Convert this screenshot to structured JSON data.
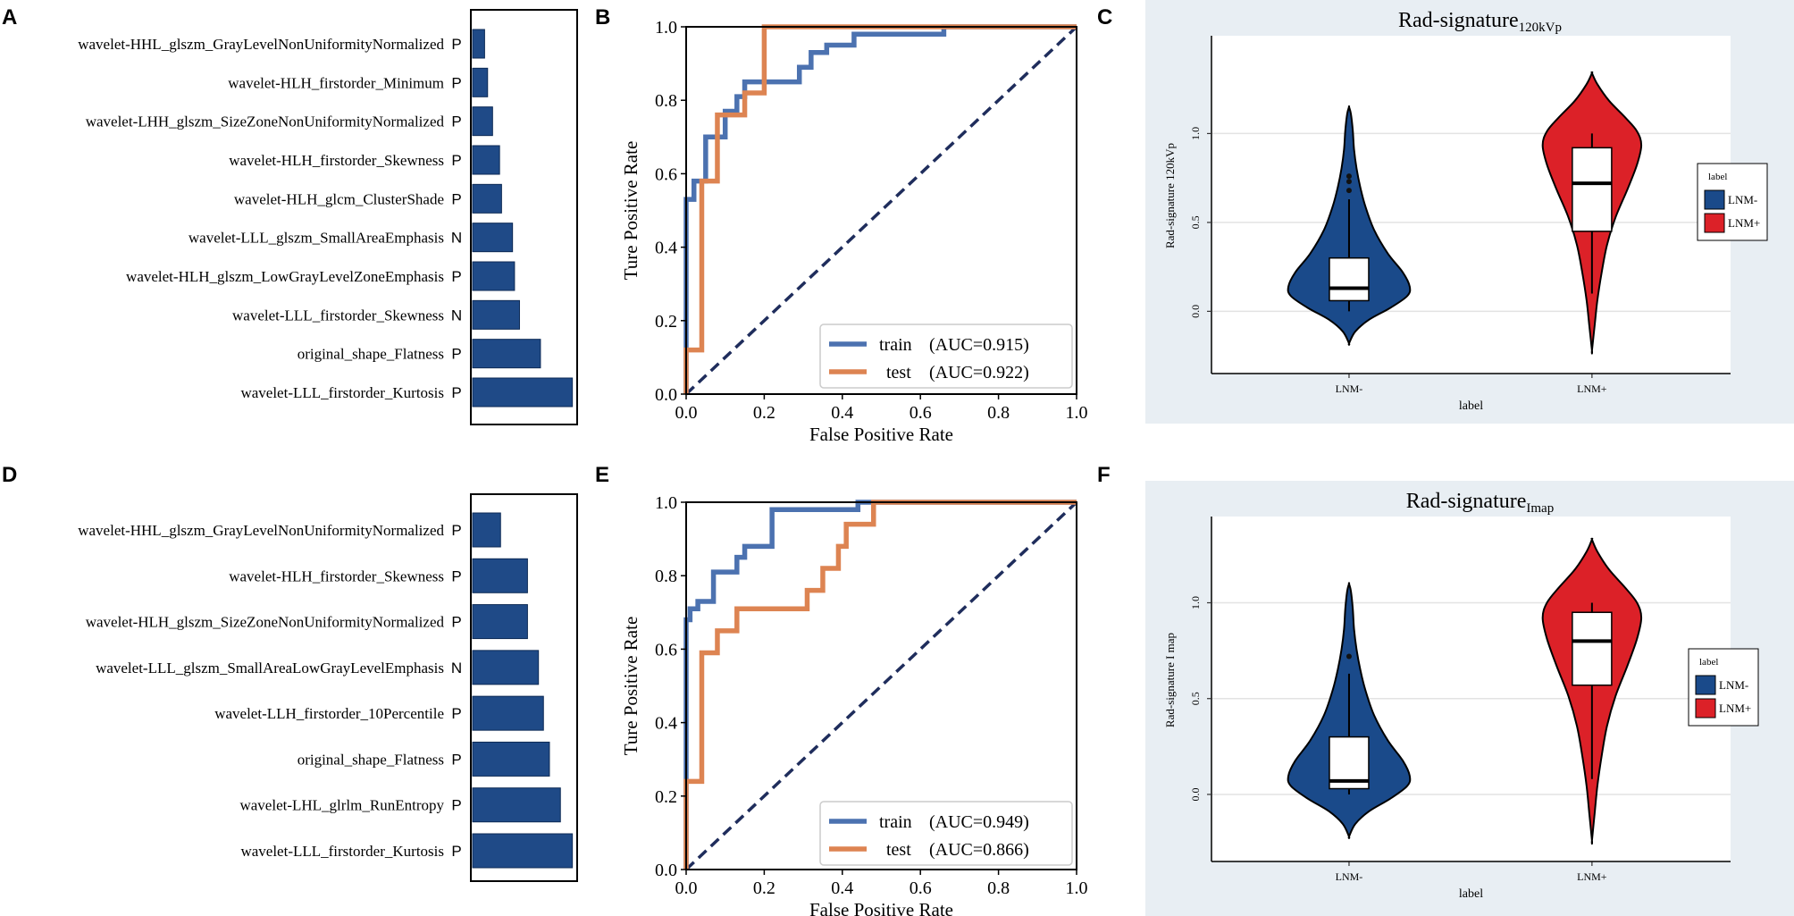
{
  "chart_data": [
    {
      "panel": "A",
      "type": "bar",
      "orientation": "horizontal",
      "categories": [
        "wavelet-HHL_glszm_GrayLevelNonUniformityNormalized",
        "wavelet-HLH_firstorder_Minimum",
        "wavelet-LHH_glszm_SizeZoneNonUniformityNormalized",
        "wavelet-HLH_firstorder_Skewness",
        "wavelet-HLH_glcm_ClusterShade",
        "wavelet-LLL_glszm_SmallAreaEmphasis",
        "wavelet-HLH_glszm_LowGrayLevelZoneEmphasis",
        "wavelet-LLL_firstorder_Skewness",
        "original_shape_Flatness",
        "wavelet-LLL_firstorder_Kurtosis"
      ],
      "signs": [
        "P",
        "P",
        "P",
        "P",
        "P",
        "N",
        "P",
        "N",
        "P",
        "P"
      ],
      "values": [
        0.12,
        0.15,
        0.2,
        0.27,
        0.29,
        0.4,
        0.42,
        0.47,
        0.68,
        1.0
      ],
      "xlim": [
        0,
        1.03
      ],
      "bar_color": "#1f4a87"
    },
    {
      "panel": "B",
      "type": "line",
      "subtype": "roc",
      "xlabel": "False Positive Rate",
      "ylabel": "Ture Positive Rate",
      "xlim": [
        0,
        1
      ],
      "ylim": [
        0,
        1
      ],
      "xticks": [
        "0.0",
        "0.2",
        "0.4",
        "0.6",
        "0.8",
        "1.0"
      ],
      "yticks": [
        "0.0",
        "0.2",
        "0.4",
        "0.6",
        "0.8",
        "1.0"
      ],
      "legend": "lower right",
      "series": [
        {
          "name": "train",
          "label": "train",
          "auc_text": "(AUC=0.915)",
          "color": "#4c72b0",
          "x": [
            0,
            0,
            0.02,
            0.02,
            0.05,
            0.05,
            0.1,
            0.1,
            0.13,
            0.13,
            0.15,
            0.15,
            0.2,
            0.2,
            0.29,
            0.29,
            0.32,
            0.32,
            0.36,
            0.36,
            0.43,
            0.43,
            0.66,
            0.66,
            1.0
          ],
          "y": [
            0,
            0.53,
            0.53,
            0.58,
            0.58,
            0.7,
            0.7,
            0.77,
            0.77,
            0.81,
            0.81,
            0.85,
            0.85,
            0.85,
            0.85,
            0.89,
            0.89,
            0.93,
            0.93,
            0.95,
            0.95,
            0.98,
            0.98,
            1.0,
            1.0
          ]
        },
        {
          "name": "test",
          "label": "test",
          "auc_text": "(AUC=0.922)",
          "color": "#dd8452",
          "x": [
            0,
            0,
            0.04,
            0.04,
            0.06,
            0.06,
            0.08,
            0.08,
            0.15,
            0.15,
            0.2,
            0.2,
            1.0
          ],
          "y": [
            0,
            0.12,
            0.12,
            0.58,
            0.58,
            0.58,
            0.58,
            0.76,
            0.76,
            0.82,
            0.82,
            1.0,
            1.0
          ]
        }
      ],
      "reference_line_color": "#1f2d5c"
    },
    {
      "panel": "C",
      "type": "violin",
      "title_main": "Rad-signature",
      "title_sub": "120kVp",
      "xlabel": "label",
      "ylabel": "Rad-signature 120kVp",
      "categories": [
        "LNM-",
        "LNM+"
      ],
      "ylim": [
        -0.35,
        1.55
      ],
      "yticks": [
        "0.0",
        "0.5",
        "1.0"
      ],
      "legend_title": "label",
      "groups": [
        {
          "name": "LNM-",
          "color": "#1a4a8a",
          "min": -0.18,
          "max": 1.15,
          "q1": 0.06,
          "median": 0.13,
          "q3": 0.3,
          "whisker_low": 0.0,
          "whisker_high": 0.63,
          "outliers": [
            0.68,
            0.73,
            0.76
          ]
        },
        {
          "name": "LNM+",
          "color": "#dc2128",
          "min": -0.22,
          "max": 1.34,
          "q1": 0.45,
          "median": 0.72,
          "q3": 0.92,
          "whisker_low": 0.1,
          "whisker_high": 1.0,
          "outliers": []
        }
      ]
    },
    {
      "panel": "D",
      "type": "bar",
      "orientation": "horizontal",
      "categories": [
        "wavelet-HHL_glszm_GrayLevelNonUniformityNormalized",
        "wavelet-HLH_firstorder_Skewness",
        "wavelet-HLH_glszm_SizeZoneNonUniformityNormalized",
        "wavelet-LLL_glszm_SmallAreaLowGrayLevelEmphasis",
        "wavelet-LLH_firstorder_10Percentile",
        "original_shape_Flatness",
        "wavelet-LHL_glrlm_RunEntropy",
        "wavelet-LLL_firstorder_Kurtosis"
      ],
      "signs": [
        "P",
        "P",
        "P",
        "N",
        "P",
        "P",
        "P",
        "P"
      ],
      "values": [
        0.28,
        0.55,
        0.55,
        0.66,
        0.71,
        0.77,
        0.88,
        1.0
      ],
      "xlim": [
        0,
        1.03
      ],
      "bar_color": "#1f4a87"
    },
    {
      "panel": "E",
      "type": "line",
      "subtype": "roc",
      "xlabel": "False Positive Rate",
      "ylabel": "Ture Positive Rate",
      "xlim": [
        0,
        1
      ],
      "ylim": [
        0,
        1
      ],
      "xticks": [
        "0.0",
        "0.2",
        "0.4",
        "0.6",
        "0.8",
        "1.0"
      ],
      "yticks": [
        "0.0",
        "0.2",
        "0.4",
        "0.6",
        "0.8",
        "1.0"
      ],
      "legend": "lower right",
      "series": [
        {
          "name": "train",
          "label": "train",
          "auc_text": "(AUC=0.949)",
          "color": "#4c72b0",
          "x": [
            0,
            0,
            0.01,
            0.01,
            0.03,
            0.03,
            0.07,
            0.07,
            0.13,
            0.13,
            0.15,
            0.15,
            0.22,
            0.22,
            0.44,
            0.44,
            0.47,
            0.47,
            1.0
          ],
          "y": [
            0,
            0.68,
            0.68,
            0.71,
            0.71,
            0.73,
            0.73,
            0.81,
            0.81,
            0.85,
            0.85,
            0.88,
            0.88,
            0.98,
            0.98,
            1.0,
            1.0,
            1.0,
            1.0
          ]
        },
        {
          "name": "test",
          "label": "test",
          "auc_text": "(AUC=0.866)",
          "color": "#dd8452",
          "x": [
            0,
            0,
            0.04,
            0.04,
            0.08,
            0.08,
            0.13,
            0.13,
            0.27,
            0.27,
            0.31,
            0.31,
            0.35,
            0.35,
            0.39,
            0.39,
            0.41,
            0.41,
            0.45,
            0.45,
            0.48,
            0.48,
            1.0
          ],
          "y": [
            0,
            0.24,
            0.24,
            0.59,
            0.59,
            0.65,
            0.65,
            0.71,
            0.71,
            0.71,
            0.71,
            0.76,
            0.76,
            0.82,
            0.82,
            0.88,
            0.88,
            0.94,
            0.94,
            0.94,
            0.94,
            1.0,
            1.0
          ]
        }
      ],
      "reference_line_color": "#1f2d5c"
    },
    {
      "panel": "F",
      "type": "violin",
      "title_main": "Rad-signature",
      "title_sub": "Imap",
      "xlabel": "label",
      "ylabel": "Rad-signature I map",
      "categories": [
        "LNM-",
        "LNM+"
      ],
      "ylim": [
        -0.35,
        1.45
      ],
      "yticks": [
        "0.0",
        "0.5",
        "1.0"
      ],
      "legend_title": "label",
      "groups": [
        {
          "name": "LNM-",
          "color": "#1a4a8a",
          "min": -0.22,
          "max": 1.1,
          "q1": 0.03,
          "median": 0.07,
          "q3": 0.3,
          "whisker_low": 0.0,
          "whisker_high": 0.63,
          "outliers": [
            0.72
          ]
        },
        {
          "name": "LNM+",
          "color": "#dc2128",
          "min": -0.24,
          "max": 1.33,
          "q1": 0.57,
          "median": 0.8,
          "q3": 0.95,
          "whisker_low": 0.08,
          "whisker_high": 1.0,
          "outliers": []
        }
      ]
    }
  ]
}
